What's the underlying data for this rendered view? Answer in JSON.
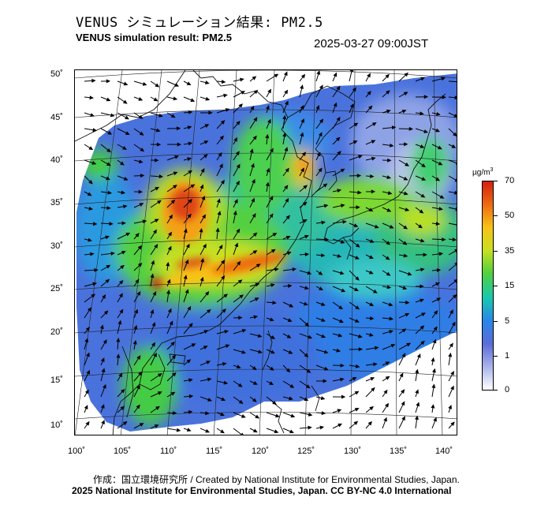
{
  "header": {
    "title_jp": "VENUS シミュレーション結果: PM2.5",
    "title_en": "VENUS simulation result: PM2.5",
    "timestamp": "2025-03-27 09:00JST"
  },
  "map": {
    "lat_labels": [
      "50˚",
      "45˚",
      "40˚",
      "35˚",
      "30˚",
      "25˚",
      "20˚",
      "15˚",
      "10˚"
    ],
    "lon_labels": [
      "100˚",
      "105˚",
      "110˚",
      "115˚",
      "120˚",
      "125˚",
      "130˚",
      "135˚",
      "140˚"
    ],
    "variable": "PM2.5",
    "region": "East Asia"
  },
  "colorbar": {
    "unit": "µg/m",
    "unit_sup": "3",
    "ticks": [
      "70",
      "50",
      "35",
      "15",
      "5",
      "1",
      "0"
    ],
    "colors": [
      "#d42010",
      "#ee6a10",
      "#f8c218",
      "#c8e020",
      "#52d040",
      "#18c8b0",
      "#2a86e8",
      "#5c6cd8",
      "#aab4ea",
      "#ffffff"
    ]
  },
  "footer": {
    "credit_line1": "作成：国立環境研究所 / Created by National Institute for Environmental Studies, Japan.",
    "credit_line2": "2025 National Institute for Environmental Studies, Japan. CC BY-NC 4.0 International"
  }
}
